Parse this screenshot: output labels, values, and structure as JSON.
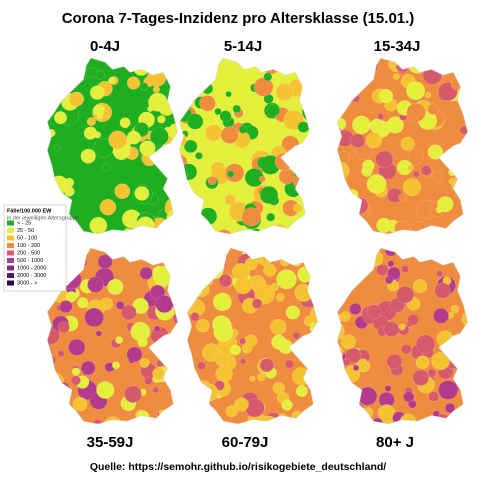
{
  "title": "Corona 7-Tages-Inzidenz pro Altersklasse (15.01.)",
  "panels": [
    {
      "label": "0-4J"
    },
    {
      "label": "5-14J"
    },
    {
      "label": "15-34J"
    },
    {
      "label": "35-59J"
    },
    {
      "label": "60-79J"
    },
    {
      "label": "80+ J"
    }
  ],
  "legend": {
    "title": "Fälle/100.000 EW",
    "subtitle": "in der jeweiligen Altersgruppe",
    "items": [
      {
        "label": "< - 25",
        "color": "#1fae1f"
      },
      {
        "label": "25 - 50",
        "color": "#e4ef3c"
      },
      {
        "label": "50 - 100",
        "color": "#f5c232"
      },
      {
        "label": "100 - 200",
        "color": "#ef8c3e"
      },
      {
        "label": "200 - 500",
        "color": "#d65a6c"
      },
      {
        "label": "500 - 1000",
        "color": "#b23b8c"
      },
      {
        "label": "1000 - 2000",
        "color": "#7c2a8c"
      },
      {
        "label": "2000 - 3000",
        "color": "#4b1a72"
      },
      {
        "label": "3000 - >",
        "color": "#2a0a42"
      }
    ]
  },
  "source": "Quelle: https://semohr.github.io/risikogebiete_deutschland/"
}
